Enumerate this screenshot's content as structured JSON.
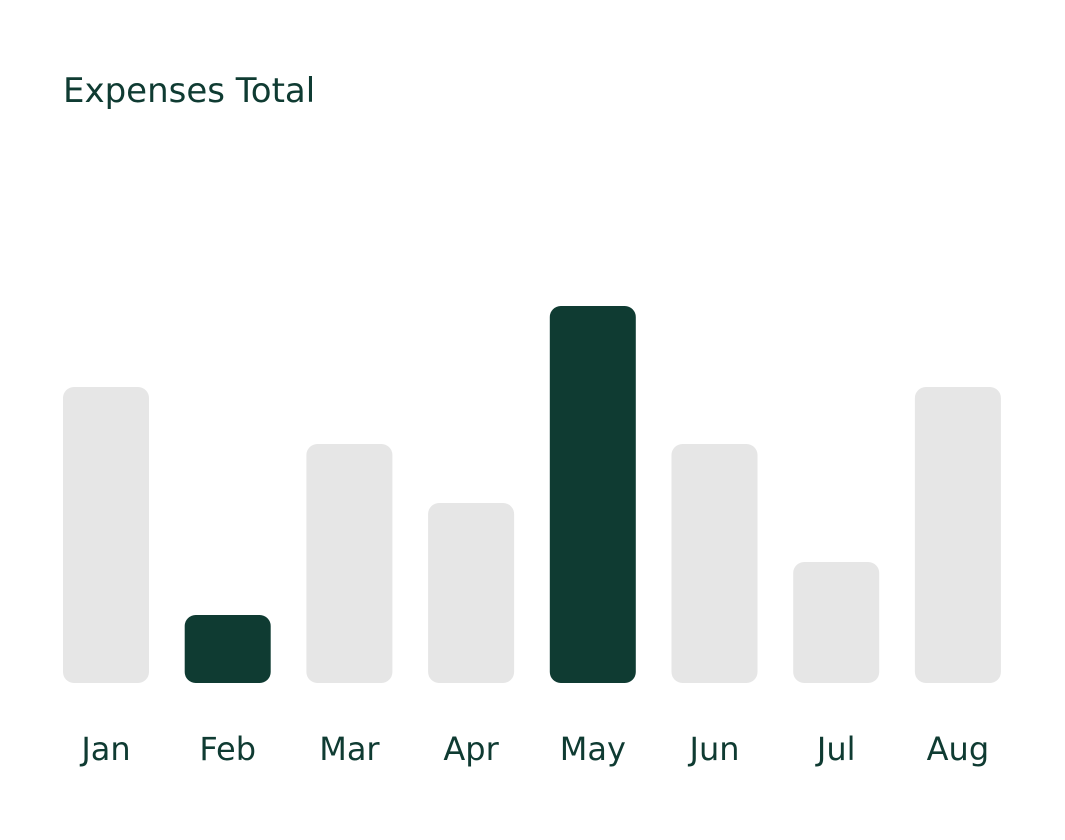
{
  "chart_data": {
    "type": "bar",
    "title": "Expenses Total",
    "categories": [
      "Jan",
      "Feb",
      "Mar",
      "Apr",
      "May",
      "Jun",
      "Jul",
      "Aug"
    ],
    "values": [
      296,
      68,
      239,
      180,
      377,
      239,
      121,
      296
    ],
    "colors": [
      "#e6e6e6",
      "#0f3b32",
      "#e6e6e6",
      "#e6e6e6",
      "#0f3b32",
      "#e6e6e6",
      "#e6e6e6",
      "#e6e6e6"
    ]
  }
}
